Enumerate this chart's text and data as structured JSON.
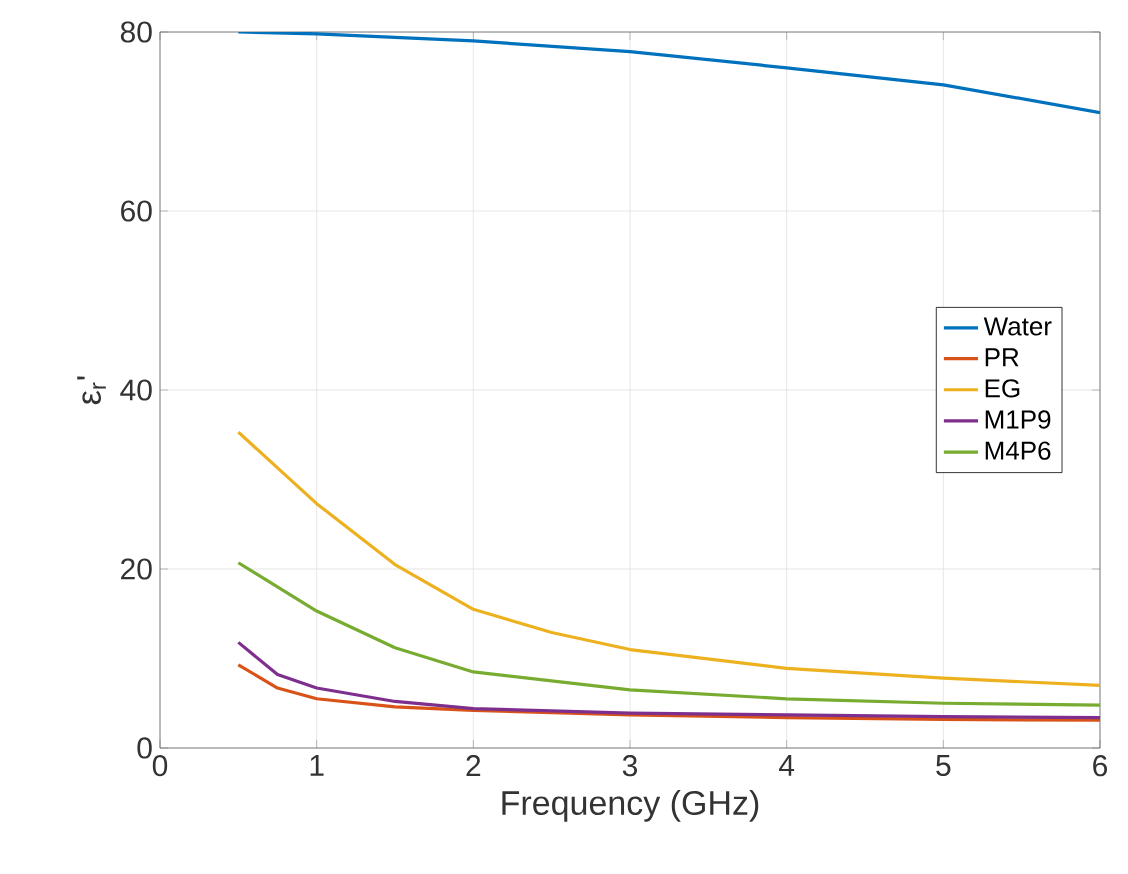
{
  "chart_data": {
    "type": "line",
    "xlabel": "Frequency (GHz)",
    "ylabel": "ε$_{r}$'",
    "xlim": [
      0,
      6
    ],
    "ylim": [
      0,
      80
    ],
    "xticks": [
      0,
      1,
      2,
      3,
      4,
      5,
      6
    ],
    "yticks": [
      0,
      20,
      40,
      60,
      80
    ],
    "grid": true,
    "legend": "right",
    "line_style": "solid",
    "marker": "none",
    "series": [
      {
        "name": "Water",
        "color": "#0072bd",
        "x": [
          0.5,
          1,
          2,
          3,
          4,
          5,
          6
        ],
        "values": [
          80.0,
          79.8,
          79.0,
          77.8,
          76.0,
          74.1,
          71.0
        ]
      },
      {
        "name": "PR",
        "color": "#d95319",
        "x": [
          0.5,
          0.75,
          1,
          1.5,
          2,
          3,
          4,
          5,
          6
        ],
        "values": [
          9.3,
          6.7,
          5.5,
          4.6,
          4.2,
          3.7,
          3.4,
          3.2,
          3.1
        ]
      },
      {
        "name": "EG",
        "color": "#edb120",
        "x": [
          0.5,
          1,
          1.5,
          2,
          2.5,
          3,
          4,
          5,
          6
        ],
        "values": [
          35.3,
          27.3,
          20.5,
          15.5,
          12.9,
          11.0,
          8.9,
          7.8,
          7.0
        ]
      },
      {
        "name": "M1P9",
        "color": "#7e2f8e",
        "x": [
          0.5,
          0.75,
          1,
          1.5,
          2,
          3,
          4,
          5,
          6
        ],
        "values": [
          11.8,
          8.2,
          6.7,
          5.2,
          4.4,
          3.9,
          3.7,
          3.5,
          3.4
        ]
      },
      {
        "name": "M4P6",
        "color": "#77ac30",
        "x": [
          0.5,
          1,
          1.5,
          2,
          3,
          4,
          5,
          6
        ],
        "values": [
          20.7,
          15.3,
          11.2,
          8.5,
          6.5,
          5.5,
          5.0,
          4.8
        ]
      }
    ]
  }
}
